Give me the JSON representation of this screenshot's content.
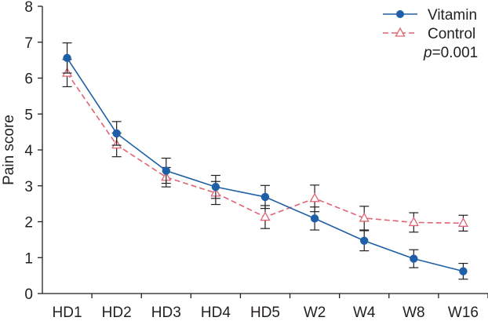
{
  "chart_data": {
    "type": "line",
    "title": "",
    "xlabel": "",
    "ylabel": "Pain score",
    "ylim": [
      0,
      8
    ],
    "yticks": [
      0,
      1,
      2,
      3,
      4,
      5,
      6,
      7,
      8
    ],
    "categories": [
      "HD1",
      "HD2",
      "HD3",
      "HD4",
      "HD5",
      "W2",
      "W4",
      "W8",
      "W16"
    ],
    "series": [
      {
        "name": "Vitamin",
        "color": "#1f5fa8",
        "line_style": "solid",
        "marker": "circle",
        "values": [
          6.56,
          4.46,
          3.42,
          2.97,
          2.69,
          2.09,
          1.47,
          0.97,
          0.62
        ],
        "error": [
          0.42,
          0.33,
          0.35,
          0.32,
          0.32,
          0.32,
          0.28,
          0.25,
          0.22
        ]
      },
      {
        "name": "Control",
        "color": "#e06376",
        "line_style": "dashed",
        "marker": "triangle-open",
        "values": [
          6.14,
          4.14,
          3.24,
          2.8,
          2.13,
          2.65,
          2.1,
          1.98,
          1.96
        ],
        "error": [
          0.38,
          0.33,
          0.27,
          0.32,
          0.32,
          0.37,
          0.33,
          0.27,
          0.22
        ]
      }
    ],
    "annotation": {
      "italic_prefix": "p",
      "text": "=0.001"
    },
    "legend_position": "top-right"
  }
}
